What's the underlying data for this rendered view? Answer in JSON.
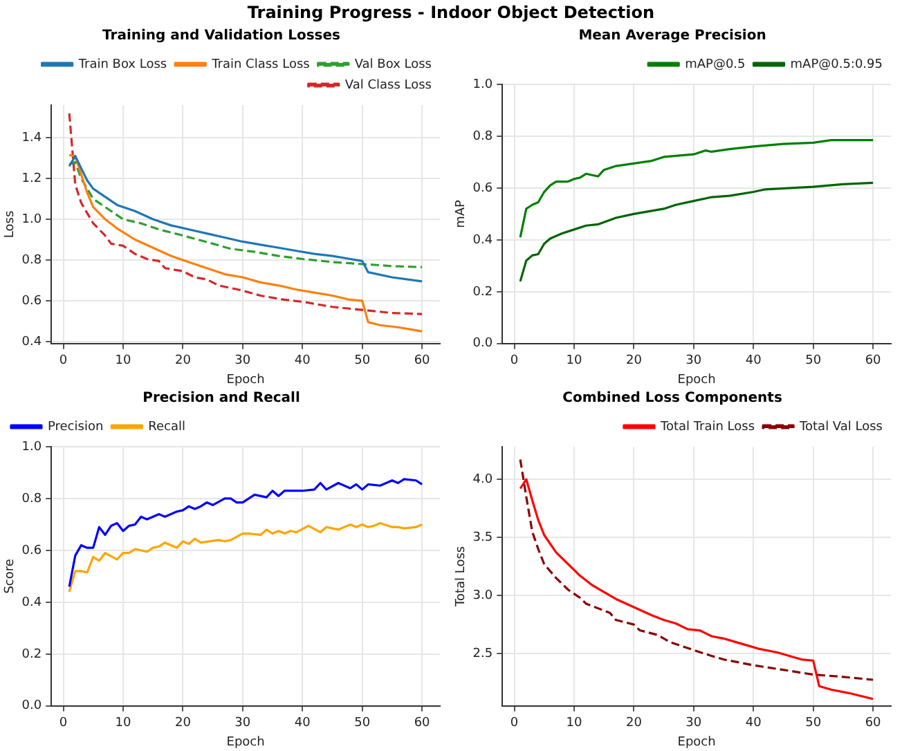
{
  "chart_data": [
    {
      "type": "line",
      "title": "Training and Validation Losses",
      "xlabel": "Epoch",
      "ylabel": "Loss",
      "annotations": [
        "Training Progress - Indoor Object Detection"
      ],
      "xlim": [
        -2,
        63
      ],
      "xticks": [
        0,
        10,
        20,
        30,
        40,
        50,
        60
      ],
      "ylim": [
        0.39,
        1.56
      ],
      "yticks": [
        0.4,
        0.6,
        0.8,
        {
          "value": 1,
          "label": "1.0"
        },
        1.2,
        1.4
      ],
      "grid": true,
      "legend": "top right",
      "marker": "none",
      "series": [
        {
          "name": "Train Box Loss",
          "color": "#1f77b4",
          "line_style": "solid",
          "x": [
            1,
            2,
            3,
            4,
            5,
            7,
            9,
            12,
            15,
            18,
            21,
            24,
            27,
            30,
            33,
            36,
            39,
            42,
            45,
            48,
            50,
            51,
            55,
            60
          ],
          "values": [
            1.26,
            1.31,
            1.25,
            1.19,
            1.15,
            1.11,
            1.07,
            1.04,
            1.0,
            0.97,
            0.95,
            0.93,
            0.91,
            0.89,
            0.875,
            0.86,
            0.845,
            0.83,
            0.82,
            0.805,
            0.795,
            0.74,
            0.715,
            0.695
          ]
        },
        {
          "name": "Train Class Loss",
          "color": "#ff7f0e",
          "line_style": "solid",
          "x": [
            1,
            2,
            3,
            4,
            5,
            7,
            9,
            12,
            15,
            18,
            21,
            24,
            27,
            30,
            33,
            36,
            39,
            42,
            45,
            48,
            50,
            51,
            53,
            56,
            60
          ],
          "values": [
            1.315,
            1.31,
            1.22,
            1.13,
            1.06,
            1.0,
            0.955,
            0.9,
            0.86,
            0.82,
            0.79,
            0.76,
            0.73,
            0.715,
            0.69,
            0.675,
            0.655,
            0.64,
            0.625,
            0.605,
            0.6,
            0.495,
            0.48,
            0.47,
            0.45
          ]
        },
        {
          "name": "Val Box Loss",
          "color": "#2ca02c",
          "line_style": "dashed",
          "x": [
            1,
            2,
            3,
            5,
            7,
            10,
            13,
            16,
            20,
            25,
            28,
            32,
            36,
            40,
            45,
            50,
            55,
            60
          ],
          "values": [
            1.27,
            1.28,
            1.2,
            1.1,
            1.06,
            1.0,
            0.98,
            0.95,
            0.92,
            0.88,
            0.855,
            0.84,
            0.82,
            0.805,
            0.79,
            0.78,
            0.77,
            0.765
          ]
        },
        {
          "name": "Val Class Loss",
          "color": "#d62728",
          "line_style": "dashed",
          "x": [
            1,
            2,
            3,
            5,
            7,
            8,
            10,
            12,
            14,
            16,
            17,
            20,
            22,
            24,
            26,
            30,
            33,
            37,
            40,
            45,
            50,
            55,
            60
          ],
          "values": [
            1.52,
            1.17,
            1.08,
            0.98,
            0.92,
            0.88,
            0.87,
            0.83,
            0.805,
            0.795,
            0.76,
            0.745,
            0.715,
            0.705,
            0.675,
            0.65,
            0.625,
            0.605,
            0.595,
            0.57,
            0.555,
            0.54,
            0.535
          ]
        }
      ]
    },
    {
      "type": "line",
      "title": "Mean Average Precision",
      "xlabel": "Epoch",
      "ylabel": "mAP",
      "xlim": [
        -2,
        63
      ],
      "xticks": [
        0,
        10,
        20,
        30,
        40,
        50,
        60
      ],
      "ylim": [
        0,
        1
      ],
      "yticks": [
        {
          "value": 0,
          "label": "0.0"
        },
        0.2,
        0.4,
        0.6,
        0.8,
        {
          "value": 1,
          "label": "1.0"
        }
      ],
      "grid": true,
      "legend": "top right",
      "marker": "none",
      "series": [
        {
          "name": "mAP@0.5",
          "color": "#008000",
          "line_style": "solid",
          "x": [
            1,
            2,
            3,
            4,
            5,
            6,
            7,
            9,
            10,
            11,
            12,
            14,
            15,
            17,
            20,
            23,
            25,
            30,
            32,
            33,
            36,
            40,
            45,
            50,
            53,
            60
          ],
          "values": [
            0.41,
            0.52,
            0.535,
            0.545,
            0.585,
            0.61,
            0.625,
            0.625,
            0.635,
            0.64,
            0.655,
            0.645,
            0.67,
            0.685,
            0.695,
            0.705,
            0.72,
            0.73,
            0.745,
            0.74,
            0.75,
            0.76,
            0.77,
            0.775,
            0.785,
            0.785
          ]
        },
        {
          "name": "mAP@0.5:0.95",
          "color": "#006400",
          "line_style": "solid",
          "x": [
            1,
            2,
            3,
            4,
            5,
            6,
            8,
            10,
            12,
            14,
            17,
            20,
            25,
            27,
            30,
            33,
            36,
            40,
            42,
            50,
            55,
            60
          ],
          "values": [
            0.24,
            0.32,
            0.34,
            0.345,
            0.385,
            0.405,
            0.425,
            0.44,
            0.455,
            0.46,
            0.485,
            0.5,
            0.52,
            0.535,
            0.55,
            0.565,
            0.57,
            0.585,
            0.595,
            0.605,
            0.615,
            0.62
          ]
        }
      ]
    },
    {
      "type": "line",
      "title": "Precision and Recall",
      "xlabel": "Epoch",
      "ylabel": "Score",
      "xlim": [
        -2,
        63
      ],
      "xticks": [
        0,
        10,
        20,
        30,
        40,
        50,
        60
      ],
      "ylim": [
        0,
        1
      ],
      "yticks": [
        {
          "value": 0,
          "label": "0.0"
        },
        0.2,
        0.4,
        0.6,
        0.8,
        {
          "value": 1,
          "label": "1.0"
        }
      ],
      "grid": true,
      "legend": "top left",
      "marker": "none",
      "series": [
        {
          "name": "Precision",
          "color": "#0000ff",
          "line_style": "solid",
          "x": [
            1,
            2,
            3,
            4,
            5,
            6,
            7,
            8,
            9,
            10,
            11,
            12,
            13,
            14,
            16,
            17,
            19,
            20,
            21,
            22,
            23,
            24,
            25,
            27,
            28,
            29,
            30,
            32,
            34,
            35,
            36,
            37,
            40,
            42,
            43,
            44,
            46,
            48,
            49,
            50,
            51,
            53,
            55,
            56,
            57,
            59,
            60
          ],
          "values": [
            0.46,
            0.58,
            0.62,
            0.61,
            0.61,
            0.69,
            0.66,
            0.695,
            0.705,
            0.675,
            0.695,
            0.7,
            0.73,
            0.72,
            0.74,
            0.73,
            0.75,
            0.755,
            0.77,
            0.76,
            0.77,
            0.785,
            0.775,
            0.8,
            0.8,
            0.785,
            0.785,
            0.815,
            0.805,
            0.83,
            0.81,
            0.83,
            0.83,
            0.835,
            0.86,
            0.835,
            0.86,
            0.84,
            0.855,
            0.835,
            0.855,
            0.85,
            0.87,
            0.86,
            0.875,
            0.87,
            0.855
          ]
        },
        {
          "name": "Recall",
          "color": "#ffa500",
          "line_style": "solid",
          "x": [
            1,
            2,
            3,
            4,
            5,
            6,
            7,
            9,
            10,
            11,
            12,
            14,
            15,
            16,
            17,
            19,
            20,
            21,
            22,
            23,
            26,
            27,
            28,
            30,
            31,
            33,
            34,
            35,
            36,
            37,
            38,
            39,
            41,
            43,
            44,
            46,
            48,
            49,
            50,
            51,
            52,
            53,
            55,
            56,
            57,
            59,
            60
          ],
          "values": [
            0.44,
            0.52,
            0.52,
            0.515,
            0.575,
            0.56,
            0.59,
            0.565,
            0.59,
            0.59,
            0.605,
            0.595,
            0.61,
            0.615,
            0.63,
            0.61,
            0.635,
            0.625,
            0.645,
            0.63,
            0.64,
            0.635,
            0.64,
            0.665,
            0.665,
            0.66,
            0.68,
            0.665,
            0.675,
            0.665,
            0.675,
            0.67,
            0.695,
            0.67,
            0.69,
            0.68,
            0.7,
            0.69,
            0.7,
            0.69,
            0.695,
            0.705,
            0.69,
            0.69,
            0.685,
            0.69,
            0.7
          ]
        }
      ]
    },
    {
      "type": "line",
      "title": "Combined Loss Components",
      "xlabel": "Epoch",
      "ylabel": "Total Loss",
      "xlim": [
        -2,
        63
      ],
      "xticks": [
        0,
        10,
        20,
        30,
        40,
        50,
        60
      ],
      "ylim": [
        2.05,
        4.28
      ],
      "yticks": [
        2.5,
        {
          "value": 3,
          "label": "3.0"
        },
        3.5,
        {
          "value": 4,
          "label": "4.0"
        }
      ],
      "grid": true,
      "legend": "top right",
      "marker": "none",
      "series": [
        {
          "name": "Total Train Loss",
          "color": "#ff0000",
          "line_style": "solid",
          "x": [
            1,
            2,
            3,
            4,
            5,
            7,
            9,
            11,
            13,
            15,
            17,
            20,
            23,
            25,
            27,
            29,
            31,
            33,
            35,
            37,
            39,
            41,
            44,
            46,
            48,
            50,
            51,
            53,
            56,
            60
          ],
          "values": [
            3.92,
            4.0,
            3.82,
            3.65,
            3.52,
            3.37,
            3.27,
            3.17,
            3.09,
            3.03,
            2.97,
            2.9,
            2.83,
            2.79,
            2.76,
            2.71,
            2.7,
            2.65,
            2.63,
            2.6,
            2.57,
            2.54,
            2.51,
            2.48,
            2.45,
            2.44,
            2.22,
            2.19,
            2.16,
            2.11
          ]
        },
        {
          "name": "Total Val Loss",
          "color": "#8b0000",
          "line_style": "dashed",
          "x": [
            1,
            2,
            3,
            4,
            5,
            7,
            9,
            11,
            12,
            14,
            16,
            17,
            20,
            21,
            24,
            26,
            30,
            33,
            35,
            40,
            45,
            50,
            55,
            60
          ],
          "values": [
            4.17,
            3.85,
            3.55,
            3.4,
            3.27,
            3.15,
            3.05,
            2.98,
            2.93,
            2.89,
            2.85,
            2.79,
            2.75,
            2.7,
            2.66,
            2.6,
            2.53,
            2.48,
            2.45,
            2.4,
            2.36,
            2.32,
            2.3,
            2.275
          ]
        }
      ]
    }
  ]
}
